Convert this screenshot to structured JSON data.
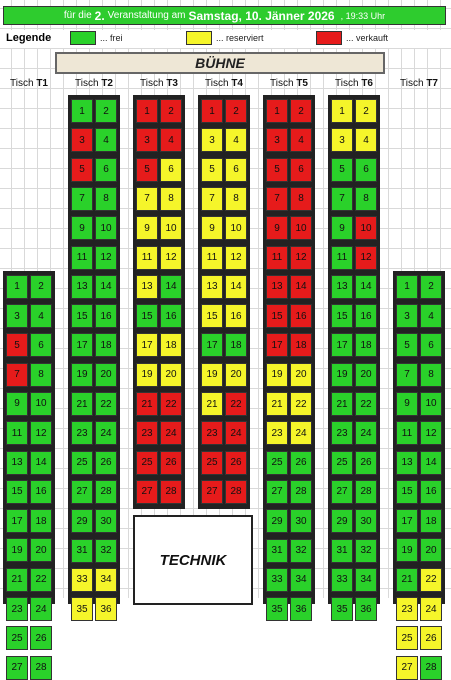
{
  "colors": {
    "frei": "#2ad12a",
    "reserviert": "#f5f52a",
    "verkauft": "#e61b1b",
    "banner": "#2ecc2e"
  },
  "banner": {
    "prefix": "für die",
    "number": "2.",
    "middle": "Veranstaltung am",
    "date": "Samstag, 10. Jänner 2026",
    "time": ", 19:33 Uhr"
  },
  "legend": {
    "title": "Legende",
    "items": [
      {
        "status": "frei",
        "label": "... frei"
      },
      {
        "status": "reserviert",
        "label": "... reserviert"
      },
      {
        "status": "verkauft",
        "label": "... verkauft"
      }
    ]
  },
  "stage": {
    "label": "BÜHNE"
  },
  "technik": {
    "label": "TECHNIK"
  },
  "tables": [
    {
      "prefix": "Tisch",
      "id": "T1",
      "start_row": 6,
      "seats": [
        [
          "1",
          "frei"
        ],
        [
          "2",
          "frei"
        ],
        [
          "3",
          "frei"
        ],
        [
          "4",
          "frei"
        ],
        [
          "5",
          "verkauft"
        ],
        [
          "6",
          "frei"
        ],
        [
          "7",
          "verkauft"
        ],
        [
          "8",
          "frei"
        ],
        [
          "9",
          "frei"
        ],
        [
          "10",
          "frei"
        ],
        [
          "11",
          "frei"
        ],
        [
          "12",
          "frei"
        ],
        [
          "13",
          "frei"
        ],
        [
          "14",
          "frei"
        ],
        [
          "15",
          "frei"
        ],
        [
          "16",
          "frei"
        ],
        [
          "17",
          "frei"
        ],
        [
          "18",
          "frei"
        ],
        [
          "19",
          "frei"
        ],
        [
          "20",
          "frei"
        ],
        [
          "21",
          "frei"
        ],
        [
          "22",
          "frei"
        ],
        [
          "23",
          "frei"
        ],
        [
          "24",
          "frei"
        ],
        [
          "25",
          "frei"
        ],
        [
          "26",
          "frei"
        ],
        [
          "27",
          "frei"
        ],
        [
          "28",
          "frei"
        ]
      ]
    },
    {
      "prefix": "Tisch",
      "id": "T2",
      "start_row": 0,
      "seats": [
        [
          "1",
          "frei"
        ],
        [
          "2",
          "frei"
        ],
        [
          "3",
          "verkauft"
        ],
        [
          "4",
          "frei"
        ],
        [
          "5",
          "verkauft"
        ],
        [
          "6",
          "frei"
        ],
        [
          "7",
          "frei"
        ],
        [
          "8",
          "frei"
        ],
        [
          "9",
          "frei"
        ],
        [
          "10",
          "frei"
        ],
        [
          "11",
          "frei"
        ],
        [
          "12",
          "frei"
        ],
        [
          "13",
          "frei"
        ],
        [
          "14",
          "frei"
        ],
        [
          "15",
          "frei"
        ],
        [
          "16",
          "frei"
        ],
        [
          "17",
          "frei"
        ],
        [
          "18",
          "frei"
        ],
        [
          "19",
          "frei"
        ],
        [
          "20",
          "frei"
        ],
        [
          "21",
          "frei"
        ],
        [
          "22",
          "frei"
        ],
        [
          "23",
          "frei"
        ],
        [
          "24",
          "frei"
        ],
        [
          "25",
          "frei"
        ],
        [
          "26",
          "frei"
        ],
        [
          "27",
          "frei"
        ],
        [
          "28",
          "frei"
        ],
        [
          "29",
          "frei"
        ],
        [
          "30",
          "frei"
        ],
        [
          "31",
          "frei"
        ],
        [
          "32",
          "frei"
        ],
        [
          "33",
          "reserviert"
        ],
        [
          "34",
          "reserviert"
        ],
        [
          "35",
          "reserviert"
        ],
        [
          "36",
          "reserviert"
        ]
      ]
    },
    {
      "prefix": "Tisch",
      "id": "T3",
      "start_row": 0,
      "seats": [
        [
          "1",
          "verkauft"
        ],
        [
          "2",
          "verkauft"
        ],
        [
          "3",
          "verkauft"
        ],
        [
          "4",
          "verkauft"
        ],
        [
          "5",
          "verkauft"
        ],
        [
          "6",
          "reserviert"
        ],
        [
          "7",
          "reserviert"
        ],
        [
          "8",
          "reserviert"
        ],
        [
          "9",
          "reserviert"
        ],
        [
          "10",
          "reserviert"
        ],
        [
          "11",
          "reserviert"
        ],
        [
          "12",
          "reserviert"
        ],
        [
          "13",
          "reserviert"
        ],
        [
          "14",
          "frei"
        ],
        [
          "15",
          "frei"
        ],
        [
          "16",
          "frei"
        ],
        [
          "17",
          "reserviert"
        ],
        [
          "18",
          "reserviert"
        ],
        [
          "19",
          "reserviert"
        ],
        [
          "20",
          "reserviert"
        ],
        [
          "21",
          "verkauft"
        ],
        [
          "22",
          "verkauft"
        ],
        [
          "23",
          "verkauft"
        ],
        [
          "24",
          "verkauft"
        ],
        [
          "25",
          "verkauft"
        ],
        [
          "26",
          "verkauft"
        ],
        [
          "27",
          "verkauft"
        ],
        [
          "28",
          "verkauft"
        ]
      ]
    },
    {
      "prefix": "Tisch",
      "id": "T4",
      "start_row": 0,
      "seats": [
        [
          "1",
          "verkauft"
        ],
        [
          "2",
          "verkauft"
        ],
        [
          "3",
          "reserviert"
        ],
        [
          "4",
          "reserviert"
        ],
        [
          "5",
          "reserviert"
        ],
        [
          "6",
          "reserviert"
        ],
        [
          "7",
          "reserviert"
        ],
        [
          "8",
          "reserviert"
        ],
        [
          "9",
          "reserviert"
        ],
        [
          "10",
          "reserviert"
        ],
        [
          "11",
          "reserviert"
        ],
        [
          "12",
          "reserviert"
        ],
        [
          "13",
          "reserviert"
        ],
        [
          "14",
          "reserviert"
        ],
        [
          "15",
          "reserviert"
        ],
        [
          "16",
          "reserviert"
        ],
        [
          "17",
          "frei"
        ],
        [
          "18",
          "frei"
        ],
        [
          "19",
          "reserviert"
        ],
        [
          "20",
          "reserviert"
        ],
        [
          "21",
          "reserviert"
        ],
        [
          "22",
          "verkauft"
        ],
        [
          "23",
          "verkauft"
        ],
        [
          "24",
          "verkauft"
        ],
        [
          "25",
          "verkauft"
        ],
        [
          "26",
          "verkauft"
        ],
        [
          "27",
          "verkauft"
        ],
        [
          "28",
          "verkauft"
        ]
      ]
    },
    {
      "prefix": "Tisch",
      "id": "T5",
      "start_row": 0,
      "seats": [
        [
          "1",
          "verkauft"
        ],
        [
          "2",
          "verkauft"
        ],
        [
          "3",
          "verkauft"
        ],
        [
          "4",
          "verkauft"
        ],
        [
          "5",
          "verkauft"
        ],
        [
          "6",
          "verkauft"
        ],
        [
          "7",
          "verkauft"
        ],
        [
          "8",
          "verkauft"
        ],
        [
          "9",
          "verkauft"
        ],
        [
          "10",
          "verkauft"
        ],
        [
          "11",
          "verkauft"
        ],
        [
          "12",
          "verkauft"
        ],
        [
          "13",
          "verkauft"
        ],
        [
          "14",
          "verkauft"
        ],
        [
          "15",
          "verkauft"
        ],
        [
          "16",
          "verkauft"
        ],
        [
          "17",
          "verkauft"
        ],
        [
          "18",
          "verkauft"
        ],
        [
          "19",
          "reserviert"
        ],
        [
          "20",
          "reserviert"
        ],
        [
          "21",
          "reserviert"
        ],
        [
          "22",
          "reserviert"
        ],
        [
          "23",
          "reserviert"
        ],
        [
          "24",
          "reserviert"
        ],
        [
          "25",
          "frei"
        ],
        [
          "26",
          "frei"
        ],
        [
          "27",
          "frei"
        ],
        [
          "28",
          "frei"
        ],
        [
          "29",
          "frei"
        ],
        [
          "30",
          "frei"
        ],
        [
          "31",
          "frei"
        ],
        [
          "32",
          "frei"
        ],
        [
          "33",
          "frei"
        ],
        [
          "34",
          "frei"
        ],
        [
          "35",
          "frei"
        ],
        [
          "36",
          "frei"
        ]
      ]
    },
    {
      "prefix": "Tisch",
      "id": "T6",
      "start_row": 0,
      "seats": [
        [
          "1",
          "reserviert"
        ],
        [
          "2",
          "reserviert"
        ],
        [
          "3",
          "reserviert"
        ],
        [
          "4",
          "reserviert"
        ],
        [
          "5",
          "frei"
        ],
        [
          "6",
          "frei"
        ],
        [
          "7",
          "frei"
        ],
        [
          "8",
          "frei"
        ],
        [
          "9",
          "frei"
        ],
        [
          "10",
          "verkauft"
        ],
        [
          "11",
          "frei"
        ],
        [
          "12",
          "verkauft"
        ],
        [
          "13",
          "frei"
        ],
        [
          "14",
          "frei"
        ],
        [
          "15",
          "frei"
        ],
        [
          "16",
          "frei"
        ],
        [
          "17",
          "frei"
        ],
        [
          "18",
          "frei"
        ],
        [
          "19",
          "frei"
        ],
        [
          "20",
          "frei"
        ],
        [
          "21",
          "frei"
        ],
        [
          "22",
          "frei"
        ],
        [
          "23",
          "frei"
        ],
        [
          "24",
          "frei"
        ],
        [
          "25",
          "frei"
        ],
        [
          "26",
          "frei"
        ],
        [
          "27",
          "frei"
        ],
        [
          "28",
          "frei"
        ],
        [
          "29",
          "frei"
        ],
        [
          "30",
          "frei"
        ],
        [
          "31",
          "frei"
        ],
        [
          "32",
          "frei"
        ],
        [
          "33",
          "frei"
        ],
        [
          "34",
          "frei"
        ],
        [
          "35",
          "frei"
        ],
        [
          "36",
          "frei"
        ]
      ]
    },
    {
      "prefix": "Tisch",
      "id": "T7",
      "start_row": 6,
      "seats": [
        [
          "1",
          "frei"
        ],
        [
          "2",
          "frei"
        ],
        [
          "3",
          "frei"
        ],
        [
          "4",
          "frei"
        ],
        [
          "5",
          "frei"
        ],
        [
          "6",
          "frei"
        ],
        [
          "7",
          "frei"
        ],
        [
          "8",
          "frei"
        ],
        [
          "9",
          "frei"
        ],
        [
          "10",
          "frei"
        ],
        [
          "11",
          "frei"
        ],
        [
          "12",
          "frei"
        ],
        [
          "13",
          "frei"
        ],
        [
          "14",
          "frei"
        ],
        [
          "15",
          "frei"
        ],
        [
          "16",
          "frei"
        ],
        [
          "17",
          "frei"
        ],
        [
          "18",
          "frei"
        ],
        [
          "19",
          "frei"
        ],
        [
          "20",
          "frei"
        ],
        [
          "21",
          "frei"
        ],
        [
          "22",
          "reserviert"
        ],
        [
          "23",
          "reserviert"
        ],
        [
          "24",
          "reserviert"
        ],
        [
          "25",
          "reserviert"
        ],
        [
          "26",
          "reserviert"
        ],
        [
          "27",
          "reserviert"
        ],
        [
          "28",
          "frei"
        ]
      ]
    }
  ]
}
